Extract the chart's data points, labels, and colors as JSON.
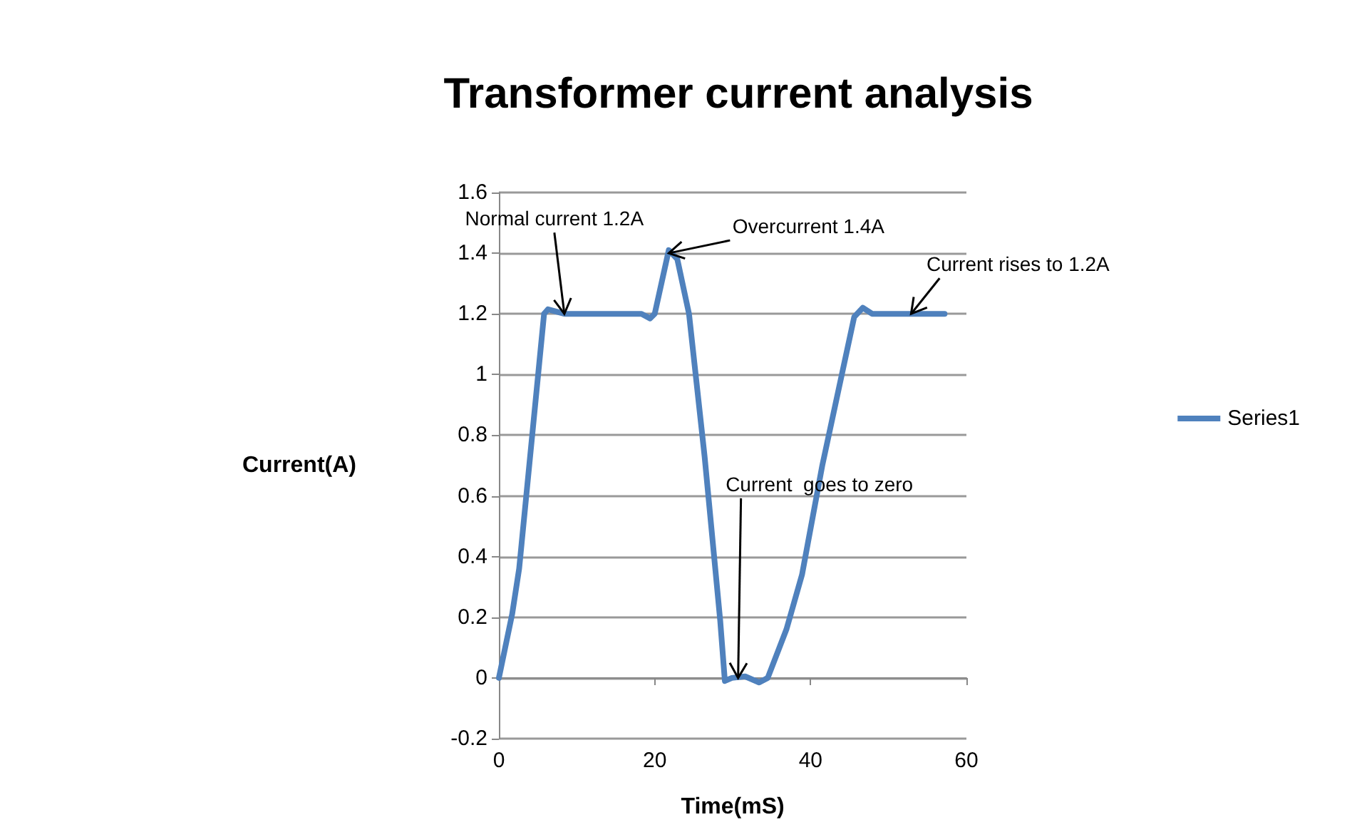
{
  "chart_data": {
    "type": "line",
    "title": "Transformer current analysis",
    "xlabel": "Time(mS)",
    "ylabel": "Current(A)",
    "xlim": [
      0,
      60
    ],
    "xticks": [
      0,
      20,
      40,
      60
    ],
    "ylim": [
      -0.2,
      1.6
    ],
    "yticks": [
      -0.2,
      0,
      0.2,
      0.4,
      0.6,
      0.8,
      1,
      1.2,
      1.4,
      1.6
    ],
    "grid": "y",
    "legend": "right",
    "marker": "none",
    "line_style": "solid",
    "series": [
      {
        "name": "Series1",
        "color": "#4f81bd",
        "x": [
          0,
          1.7,
          2.6,
          5.8,
          6.3,
          8.4,
          18.3,
          19.4,
          20,
          21.8,
          22.9,
          24.4,
          26.4,
          28.4,
          29,
          29.9,
          31.6,
          33.4,
          34.5,
          36.9,
          38.9,
          41.5,
          45.6,
          46.7,
          47.9,
          57.2
        ],
        "values": [
          0,
          0.21,
          0.36,
          1.2,
          1.215,
          1.2,
          1.2,
          1.185,
          1.2,
          1.41,
          1.38,
          1.2,
          0.73,
          0.19,
          -0.01,
          0,
          0.005,
          -0.015,
          0,
          0.16,
          0.34,
          0.7,
          1.19,
          1.22,
          1.2,
          1.2
        ]
      }
    ],
    "annotations": [
      {
        "text": "Normal current 1.2A",
        "x": 8.4,
        "y": 1.2
      },
      {
        "text": "Overcurrent 1.4A",
        "x": 21.8,
        "y": 1.4
      },
      {
        "text": "Current rises to 1.2A",
        "x": 52.9,
        "y": 1.2
      },
      {
        "text": "Current  goes to zero",
        "x": 30.7,
        "y": 0
      }
    ]
  }
}
